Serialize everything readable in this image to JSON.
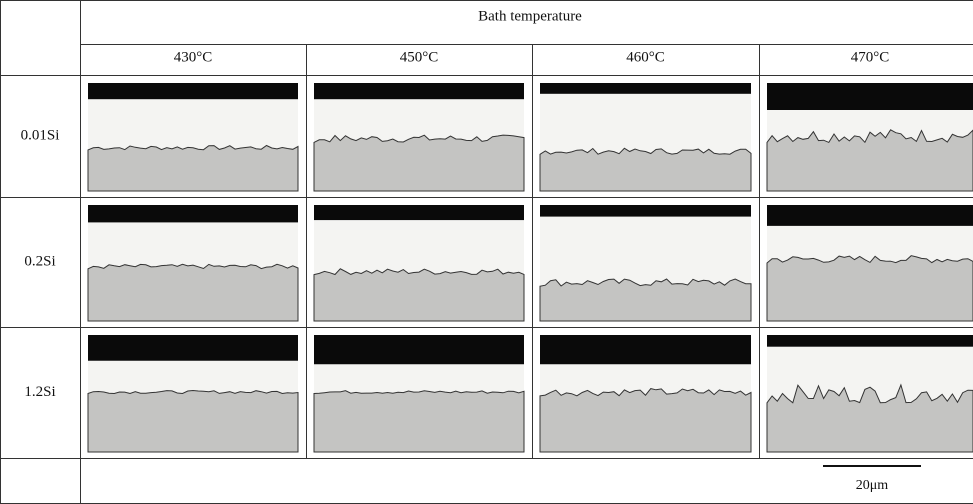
{
  "header": {
    "title": "Bath temperature",
    "columns": [
      "430°C",
      "450°C",
      "460°C",
      "470°C"
    ]
  },
  "rows": [
    "0.01Si",
    "0.2Si",
    "1.2Si"
  ],
  "scale_bar": "20μm"
}
